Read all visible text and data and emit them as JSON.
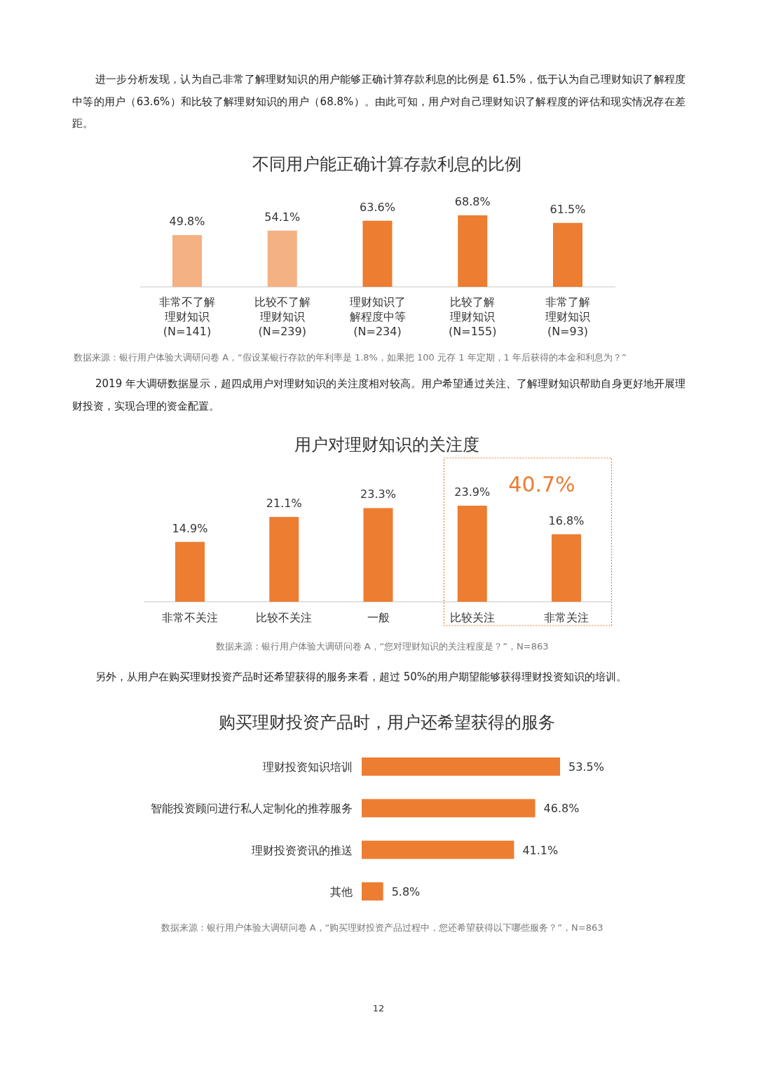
{
  "chart_data": [
    {
      "type": "bar",
      "title": "不同用户能正确计算存款利息的比例",
      "categories": [
        "非常不了解理财知识(N=141)",
        "比较不了解理财知识(N=239)",
        "理财知识了解程度中等(N=234)",
        "比较了解理财知识(N=155)",
        "非常了解理财知识(N=93)"
      ],
      "values": [
        49.8,
        54.1,
        63.6,
        68.8,
        61.5
      ],
      "value_labels": [
        "49.8%",
        "54.1%",
        "63.6%",
        "68.8%",
        "61.5%"
      ],
      "colors": [
        "#f4b183",
        "#f4b183",
        "#ed7d31",
        "#ed7d31",
        "#ed7d31"
      ],
      "annotations": [
        "进一步分析发现，认为自己非常了解理财知识的用户能够正确计算存款利息的比例是 61.5%，低于认为自己理财知识了解程度中等的用户（63.6%）和比较了解理财知识的用户（68.8%）。由此可知，用户对自己理财知识了解程度的评估和现实情况存在差距。",
        "数据来源：银行用户体验大调研问卷 A，“假设某银行存款的年利率是 1.8%，如果把 100 元存 1 年定期，1 年后获得的本金和利息为？”"
      ]
    },
    {
      "type": "bar",
      "title": "用户对理财知识的关注度",
      "categories": [
        "非常不关注",
        "比较不关注",
        "一般",
        "比较关注",
        "非常关注"
      ],
      "values": [
        14.9,
        21.1,
        23.3,
        23.9,
        16.8
      ],
      "value_labels": [
        "14.9%",
        "21.1%",
        "23.3%",
        "23.9%",
        "16.8%"
      ],
      "colors": [
        "#ed7d31",
        "#ed7d31",
        "#ed7d31",
        "#ed7d31",
        "#ed7d31"
      ],
      "annotations": [
        "2019 年大调研数据显示，超四成用户对理财知识的关注度相对较高。用户希望通过关注、了解理财知识帮助自身更好地开展理财投资，实现合理的资金配置。",
        "数据来源：银行用户体验大调研问卷 A，“您对理财知识的关注程度是？”，N=863",
        "40.7%"
      ]
    },
    {
      "type": "bar",
      "orientation": "horizontal",
      "title": "购买理财投资产品时，用户还希望获得的服务",
      "categories": [
        "理财投资知识培训",
        "智能投资顾问进行私人定制化的推荐服务",
        "理财投资资讯的推送",
        "其他"
      ],
      "values": [
        53.5,
        46.8,
        41.1,
        5.8
      ],
      "value_labels": [
        "53.5%",
        "46.8%",
        "41.1%",
        "5.8%"
      ],
      "colors": [
        "#ed7d31",
        "#ed7d31",
        "#ed7d31",
        "#ed7d31"
      ],
      "annotations": [
        "另外，从用户在购买理财投资产品时还希望获得的服务来看，超过 50%的用户期望能够获得理财投资知识的培训。",
        "数据来源：银行用户体验大调研问卷 A，“购买理财投资产品过程中，您还希望获得以下哪些服务？”，N=863",
        "12"
      ]
    }
  ]
}
